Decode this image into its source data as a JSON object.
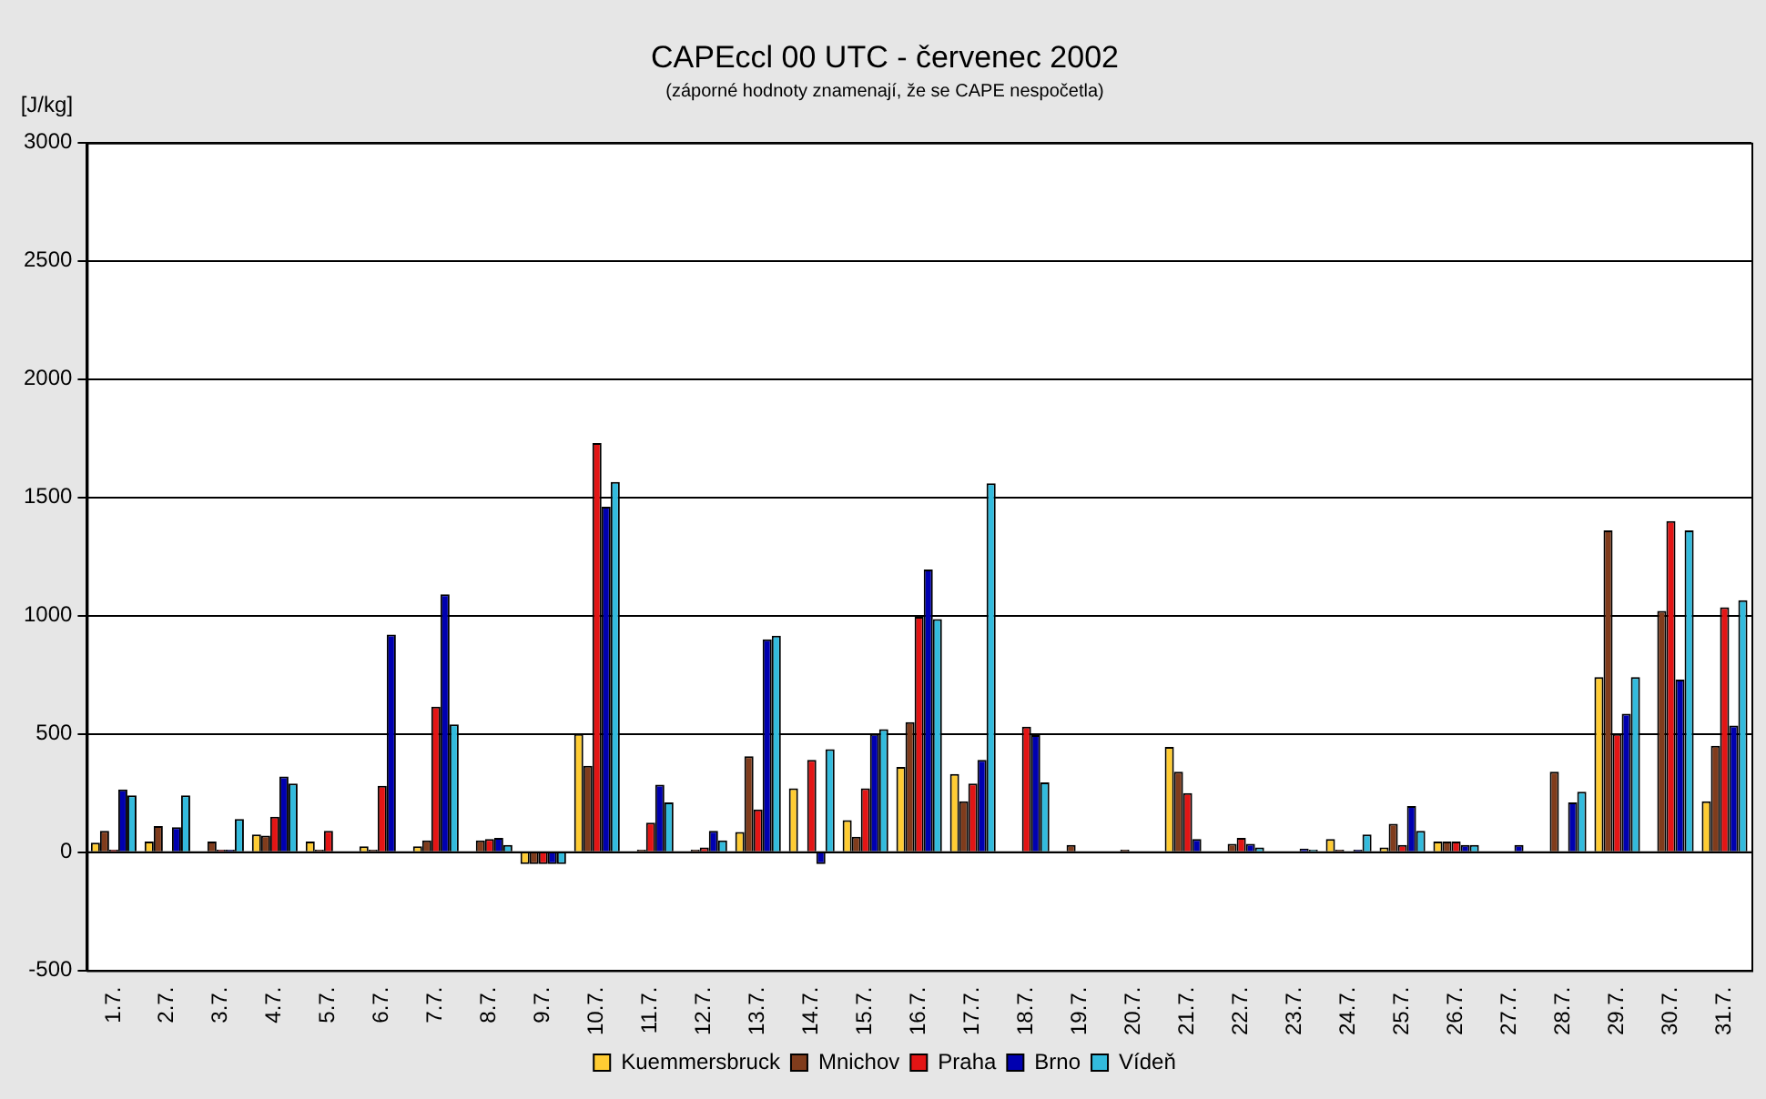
{
  "chart_data": {
    "type": "bar",
    "title": "CAPEccl 00 UTC - červenec 2002",
    "subtitle": "(záporné hodnoty znamenají, že se CAPE nespočetla)",
    "ylabel": "[J/kg]",
    "categories": [
      "1.7.",
      "2.7.",
      "3.7.",
      "4.7.",
      "5.7.",
      "6.7.",
      "7.7.",
      "8.7.",
      "9.7.",
      "10.7.",
      "11.7.",
      "12.7.",
      "13.7.",
      "14.7.",
      "15.7.",
      "16.7.",
      "17.7.",
      "18.7.",
      "19.7.",
      "20.7.",
      "21.7.",
      "22.7.",
      "23.7.",
      "24.7.",
      "25.7.",
      "26.7.",
      "27.7.",
      "28.7.",
      "29.7.",
      "30.7.",
      "31.7."
    ],
    "series": [
      {
        "name": "Kuemmersbruck",
        "color": "#ffcc33",
        "values": [
          40,
          45,
          null,
          75,
          45,
          25,
          25,
          null,
          -50,
          500,
          null,
          null,
          85,
          270,
          135,
          360,
          330,
          null,
          null,
          null,
          445,
          null,
          null,
          55,
          20,
          45,
          null,
          null,
          740,
          null,
          215
        ]
      },
      {
        "name": "Mnichov",
        "color": "#803c1c",
        "values": [
          90,
          110,
          45,
          70,
          10,
          10,
          50,
          50,
          -50,
          365,
          10,
          10,
          405,
          null,
          65,
          550,
          215,
          null,
          30,
          10,
          340,
          35,
          null,
          10,
          120,
          45,
          null,
          340,
          1360,
          1020,
          450
        ]
      },
      {
        "name": "Praha",
        "color": "#e31515",
        "values": [
          10,
          null,
          10,
          150,
          90,
          280,
          615,
          55,
          -50,
          1730,
          125,
          20,
          180,
          390,
          270,
          995,
          290,
          530,
          null,
          null,
          250,
          60,
          null,
          null,
          30,
          45,
          null,
          null,
          500,
          1400,
          1035
        ]
      },
      {
        "name": "Brno",
        "color": "#0000b0",
        "values": [
          265,
          105,
          10,
          320,
          null,
          920,
          1090,
          60,
          -50,
          1460,
          285,
          90,
          900,
          -50,
          500,
          1195,
          390,
          495,
          null,
          null,
          55,
          35,
          15,
          10,
          195,
          30,
          30,
          210,
          585,
          730,
          535
        ]
      },
      {
        "name": "Vídeň",
        "color": "#33bbdd",
        "values": [
          240,
          240,
          140,
          290,
          null,
          null,
          540,
          30,
          -50,
          1565,
          210,
          50,
          915,
          435,
          520,
          985,
          1560,
          295,
          null,
          null,
          null,
          20,
          10,
          75,
          90,
          30,
          null,
          255,
          740,
          1360,
          1065
        ]
      }
    ],
    "ylim": [
      -500,
      3000
    ],
    "yticks": [
      -500,
      0,
      500,
      1000,
      1500,
      2000,
      2500,
      3000
    ],
    "grid": "y",
    "legend": "bottom"
  }
}
